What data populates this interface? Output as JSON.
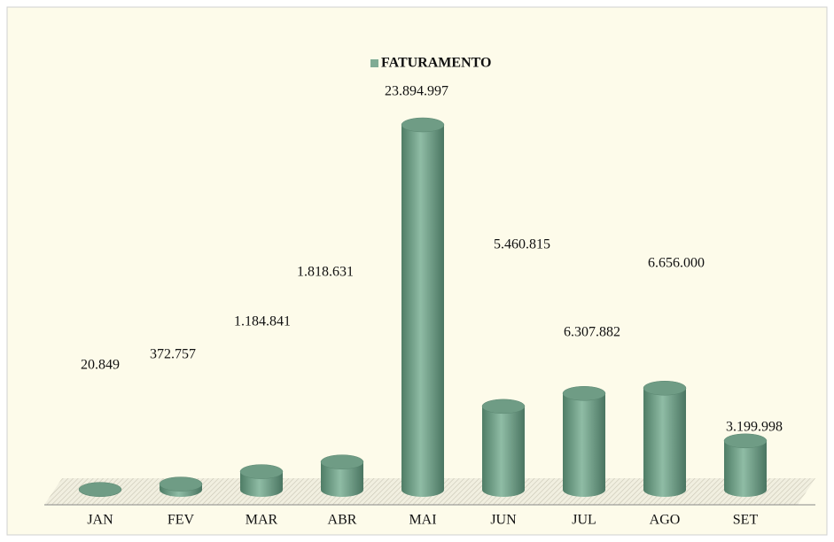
{
  "chart_data": {
    "type": "bar3d",
    "categories": [
      "JAN",
      "FEV",
      "MAR",
      "ABR",
      "MAI",
      "JUN",
      "JUL",
      "AGO",
      "SET"
    ],
    "series": [
      {
        "name": "FATURAMENTO",
        "color": "#7fab94",
        "values": [
          20849,
          372757,
          1184841,
          1818631,
          23894997,
          5460815,
          6307882,
          6656000,
          3199998
        ],
        "value_labels": [
          "20.849",
          "372.757",
          "1.184.841",
          "1.818.631",
          "23.894.997",
          "5.460.815",
          "6.307.882",
          "6.656.000",
          "3.199.998"
        ]
      }
    ],
    "legend": "top"
  }
}
